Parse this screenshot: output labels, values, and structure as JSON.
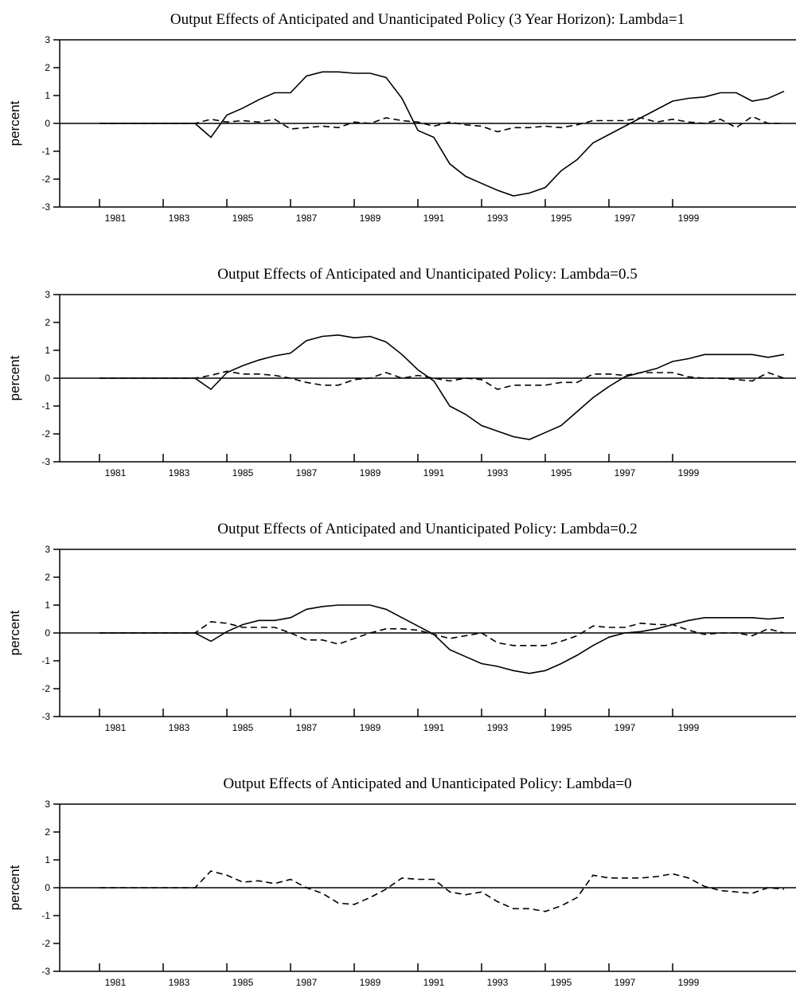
{
  "chart_data": [
    {
      "type": "line",
      "title": "Output Effects of Anticipated and Unanticipated Policy (3 Year Horizon): Lambda=1",
      "ylabel": "percent",
      "x": [
        1981,
        1981.5,
        1982,
        1982.5,
        1983,
        1983.5,
        1984,
        1984.5,
        1985,
        1985.5,
        1986,
        1986.5,
        1987,
        1987.5,
        1988,
        1988.5,
        1989,
        1989.5,
        1990,
        1990.5,
        1991,
        1991.5,
        1992,
        1992.5,
        1993,
        1993.5,
        1994,
        1994.5,
        1995,
        1995.5,
        1996,
        1996.5,
        1997,
        1997.5,
        1998,
        1998.5,
        1999,
        1999.5,
        2000,
        2000.5,
        2001,
        2001.5,
        2002,
        2002.5
      ],
      "xlim": [
        1979.75,
        2002.875
      ],
      "xticks": [
        1981,
        1983,
        1985,
        1987,
        1989,
        1991,
        1993,
        1995,
        1997,
        1999
      ],
      "ylim": [
        -3,
        3
      ],
      "yticks": [
        -3,
        -2,
        -1,
        0,
        1,
        2,
        3
      ],
      "series": [
        {
          "color": "#000000",
          "style": "solid",
          "values": [
            0,
            0,
            0,
            0,
            0,
            0,
            0,
            -0.5,
            0.3,
            0.55,
            0.85,
            1.1,
            1.1,
            1.7,
            1.85,
            1.85,
            1.8,
            1.8,
            1.65,
            0.9,
            -0.25,
            -0.5,
            -1.45,
            -1.9,
            -2.15,
            -2.4,
            -2.6,
            -2.5,
            -2.3,
            -1.7,
            -1.3,
            -0.7,
            -0.4,
            -0.1,
            0.2,
            0.5,
            0.8,
            0.9,
            0.95,
            1.1,
            1.1,
            0.8,
            0.9,
            1.15
          ]
        },
        {
          "color": "#000000",
          "style": "dashed",
          "values": [
            0,
            0,
            0,
            0,
            0,
            0,
            0,
            0.15,
            0.05,
            0.1,
            0.05,
            0.15,
            -0.2,
            -0.15,
            -0.1,
            -0.15,
            0.05,
            0,
            0.2,
            0.1,
            0.05,
            -0.1,
            0.05,
            -0.05,
            -0.1,
            -0.3,
            -0.15,
            -0.15,
            -0.1,
            -0.15,
            -0.05,
            0.1,
            0.1,
            0.1,
            0.2,
            0.05,
            0.15,
            0.05,
            0,
            0.15,
            -0.15,
            0.25,
            0,
            0
          ]
        }
      ]
    },
    {
      "type": "line",
      "title": "Output Effects of Anticipated and Unanticipated Policy: Lambda=0.5",
      "ylabel": "percent",
      "x": [
        1981,
        1981.5,
        1982,
        1982.5,
        1983,
        1983.5,
        1984,
        1984.5,
        1985,
        1985.5,
        1986,
        1986.5,
        1987,
        1987.5,
        1988,
        1988.5,
        1989,
        1989.5,
        1990,
        1990.5,
        1991,
        1991.5,
        1992,
        1992.5,
        1993,
        1993.5,
        1994,
        1994.5,
        1995,
        1995.5,
        1996,
        1996.5,
        1997,
        1997.5,
        1998,
        1998.5,
        1999,
        1999.5,
        2000,
        2000.5,
        2001,
        2001.5,
        2002,
        2002.5
      ],
      "xlim": [
        1979.75,
        2002.875
      ],
      "xticks": [
        1981,
        1983,
        1985,
        1987,
        1989,
        1991,
        1993,
        1995,
        1997,
        1999
      ],
      "ylim": [
        -3,
        3
      ],
      "yticks": [
        -3,
        -2,
        -1,
        0,
        1,
        2,
        3
      ],
      "series": [
        {
          "color": "#000000",
          "style": "solid",
          "values": [
            0,
            0,
            0,
            0,
            0,
            0,
            0,
            -0.4,
            0.2,
            0.45,
            0.65,
            0.8,
            0.9,
            1.35,
            1.5,
            1.55,
            1.45,
            1.5,
            1.3,
            0.85,
            0.3,
            -0.1,
            -1.0,
            -1.3,
            -1.7,
            -1.9,
            -2.1,
            -2.2,
            -1.95,
            -1.7,
            -1.2,
            -0.7,
            -0.3,
            0.05,
            0.2,
            0.35,
            0.6,
            0.7,
            0.85,
            0.85,
            0.85,
            0.85,
            0.75,
            0.85
          ]
        },
        {
          "color": "#000000",
          "style": "dashed",
          "values": [
            0,
            0,
            0,
            0,
            0,
            0,
            0,
            0.1,
            0.25,
            0.15,
            0.15,
            0.1,
            0,
            -0.15,
            -0.25,
            -0.25,
            -0.05,
            0,
            0.2,
            0,
            0.1,
            0,
            -0.1,
            0,
            -0.05,
            -0.4,
            -0.25,
            -0.25,
            -0.25,
            -0.15,
            -0.15,
            0.15,
            0.15,
            0.1,
            0.2,
            0.2,
            0.2,
            0.05,
            0,
            0,
            -0.05,
            -0.1,
            0.2,
            0
          ]
        }
      ]
    },
    {
      "type": "line",
      "title": "Output Effects of Anticipated and Unanticipated Policy: Lambda=0.2",
      "ylabel": "percent",
      "x": [
        1981,
        1981.5,
        1982,
        1982.5,
        1983,
        1983.5,
        1984,
        1984.5,
        1985,
        1985.5,
        1986,
        1986.5,
        1987,
        1987.5,
        1988,
        1988.5,
        1989,
        1989.5,
        1990,
        1990.5,
        1991,
        1991.5,
        1992,
        1992.5,
        1993,
        1993.5,
        1994,
        1994.5,
        1995,
        1995.5,
        1996,
        1996.5,
        1997,
        1997.5,
        1998,
        1998.5,
        1999,
        1999.5,
        2000,
        2000.5,
        2001,
        2001.5,
        2002,
        2002.5
      ],
      "xlim": [
        1979.75,
        2002.875
      ],
      "xticks": [
        1981,
        1983,
        1985,
        1987,
        1989,
        1991,
        1993,
        1995,
        1997,
        1999
      ],
      "ylim": [
        -3,
        3
      ],
      "yticks": [
        -3,
        -2,
        -1,
        0,
        1,
        2,
        3
      ],
      "series": [
        {
          "color": "#000000",
          "style": "solid",
          "values": [
            0,
            0,
            0,
            0,
            0,
            0,
            0,
            -0.3,
            0.05,
            0.3,
            0.45,
            0.45,
            0.55,
            0.85,
            0.95,
            1,
            1,
            1,
            0.85,
            0.55,
            0.25,
            -0.05,
            -0.6,
            -0.85,
            -1.1,
            -1.2,
            -1.35,
            -1.45,
            -1.35,
            -1.1,
            -0.8,
            -0.45,
            -0.15,
            0,
            0.05,
            0.15,
            0.3,
            0.45,
            0.55,
            0.55,
            0.55,
            0.55,
            0.5,
            0.55
          ]
        },
        {
          "color": "#000000",
          "style": "dashed",
          "values": [
            0,
            0,
            0,
            0,
            0,
            0,
            0,
            0.4,
            0.35,
            0.2,
            0.2,
            0.2,
            0,
            -0.25,
            -0.25,
            -0.4,
            -0.2,
            0,
            0.15,
            0.15,
            0.1,
            -0.05,
            -0.2,
            -0.1,
            0,
            -0.35,
            -0.45,
            -0.45,
            -0.45,
            -0.3,
            -0.1,
            0.25,
            0.2,
            0.2,
            0.35,
            0.3,
            0.3,
            0.1,
            -0.05,
            0,
            0,
            -0.1,
            0.15,
            0
          ]
        }
      ]
    },
    {
      "type": "line",
      "title": "Output Effects of Anticipated and Unanticipated Policy: Lambda=0",
      "ylabel": "percent",
      "x": [
        1981,
        1981.5,
        1982,
        1982.5,
        1983,
        1983.5,
        1984,
        1984.5,
        1985,
        1985.5,
        1986,
        1986.5,
        1987,
        1987.5,
        1988,
        1988.5,
        1989,
        1989.5,
        1990,
        1990.5,
        1991,
        1991.5,
        1992,
        1992.5,
        1993,
        1993.5,
        1994,
        1994.5,
        1995,
        1995.5,
        1996,
        1996.5,
        1997,
        1997.5,
        1998,
        1998.5,
        1999,
        1999.5,
        2000,
        2000.5,
        2001,
        2001.5,
        2002,
        2002.5
      ],
      "xlim": [
        1979.75,
        2002.875
      ],
      "xticks": [
        1981,
        1983,
        1985,
        1987,
        1989,
        1991,
        1993,
        1995,
        1997,
        1999
      ],
      "ylim": [
        -3,
        3
      ],
      "yticks": [
        -3,
        -2,
        -1,
        0,
        1,
        2,
        3
      ],
      "series": [
        {
          "color": "#000000",
          "style": "dashed",
          "values": [
            0,
            0,
            0,
            0,
            0,
            0,
            0,
            0.6,
            0.45,
            0.2,
            0.25,
            0.15,
            0.3,
            0,
            -0.2,
            -0.55,
            -0.6,
            -0.35,
            -0.05,
            0.35,
            0.3,
            0.3,
            -0.15,
            -0.25,
            -0.15,
            -0.5,
            -0.75,
            -0.75,
            -0.85,
            -0.65,
            -0.35,
            0.45,
            0.35,
            0.35,
            0.35,
            0.4,
            0.5,
            0.35,
            0.05,
            -0.1,
            -0.15,
            -0.2,
            0,
            -0.05
          ]
        }
      ]
    }
  ]
}
